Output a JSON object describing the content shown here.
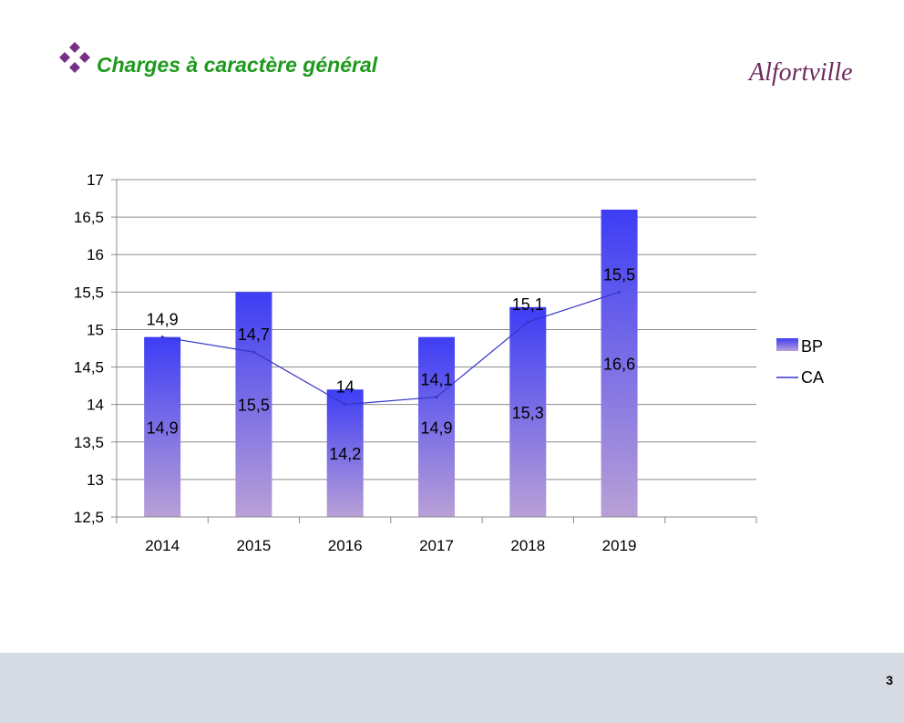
{
  "slide": {
    "title": "Charges à caractère général",
    "title_color": "#1d9a1d",
    "bullet_icon": "diamond-cluster-icon",
    "bullet_color": "#7a2f86",
    "logo_text": "Alfortville",
    "logo_color": "#6e2a5e",
    "page_number": "3",
    "footer_color": "#d6dbe3"
  },
  "chart_data": {
    "type": "bar",
    "categories": [
      "2014",
      "2015",
      "2016",
      "2017",
      "2018",
      "2019"
    ],
    "series": [
      {
        "name": "BP",
        "kind": "bar",
        "values": [
          14.9,
          15.5,
          14.2,
          14.9,
          15.3,
          16.6
        ],
        "labels": [
          "14,9",
          "15,5",
          "14,2",
          "14,9",
          "15,3",
          "16,6"
        ],
        "color_top": "#3d3df5",
        "color_bottom": "#b9a0d6"
      },
      {
        "name": "CA",
        "kind": "line",
        "values": [
          14.9,
          14.7,
          14.0,
          14.1,
          15.1,
          15.5
        ],
        "labels": [
          "14,9",
          "14,7",
          "14",
          "14,1",
          "15,1",
          "15,5"
        ],
        "color": "#3535c8"
      }
    ],
    "ylim": [
      12.5,
      17
    ],
    "yticks": [
      12.5,
      13,
      13.5,
      14,
      14.5,
      15,
      15.5,
      16,
      16.5,
      17
    ],
    "ytick_labels": [
      "12,5",
      "13",
      "13,5",
      "14",
      "14,5",
      "15",
      "15,5",
      "16",
      "16,5",
      "17"
    ],
    "grid": true,
    "legend": "right",
    "title": "",
    "xlabel": "",
    "ylabel": ""
  }
}
